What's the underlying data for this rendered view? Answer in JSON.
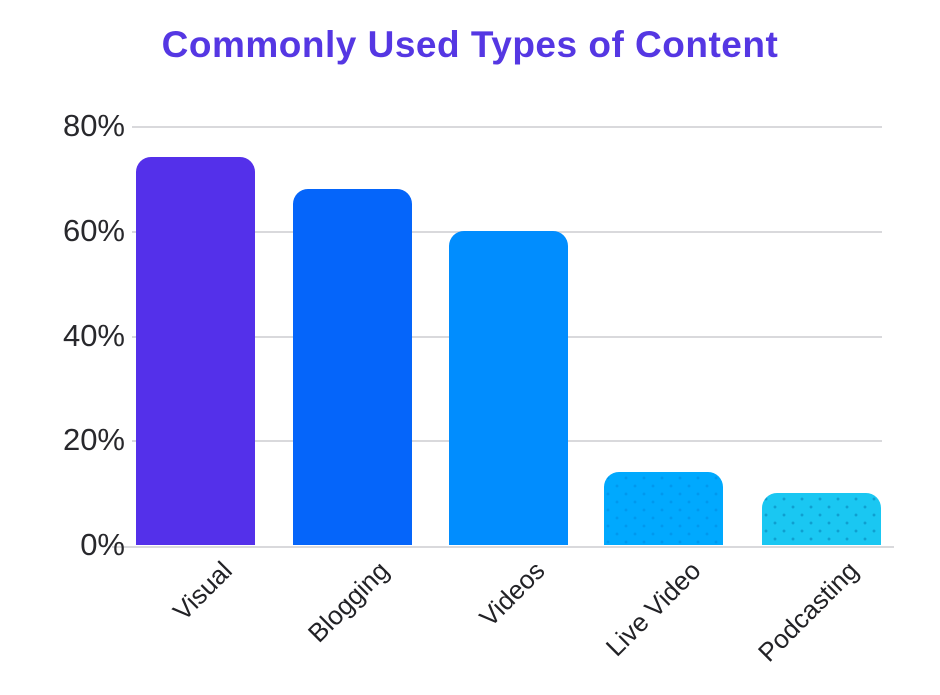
{
  "title": "Commonly Used Types of Content",
  "chart_data": {
    "type": "bar",
    "title": "Commonly Used Types of Content",
    "categories": [
      "Visual",
      "Blogging",
      "Videos",
      "Live Video",
      "Podcasting"
    ],
    "values": [
      74,
      68,
      60,
      14,
      10
    ],
    "unit": "%",
    "xlabel": "",
    "ylabel": "",
    "ylim": [
      0,
      80
    ],
    "yticks": [
      0,
      20,
      40,
      60,
      80
    ],
    "ytick_labels": [
      "0%",
      "20%",
      "40%",
      "60%",
      "80%"
    ],
    "grid": true,
    "legend": false,
    "bar_colors": [
      "#5430EA",
      "#0565FA",
      "#018DFE",
      "#00A9FE",
      "#1AC7F2"
    ],
    "bar_textures": [
      "none",
      "none",
      "none",
      "dots-light",
      "dots-strong"
    ],
    "title_color": "#5537E3",
    "axis_text_color": "#28282C",
    "x_label_color": "#222226",
    "gridline_color": "#D9D9DC",
    "background_color": "#FFFFFF"
  }
}
